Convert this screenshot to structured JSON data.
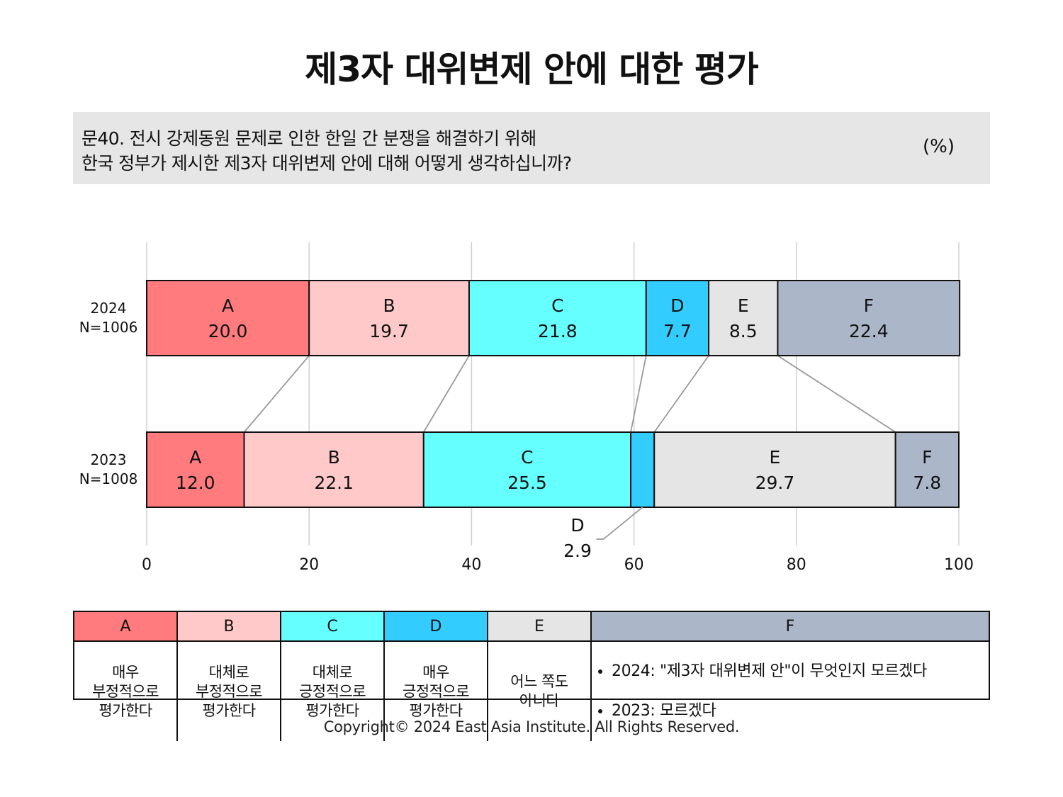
{
  "title": "제3자 대위변제 안에 대한 평가",
  "question": {
    "line1": "문40. 전시 강제동원 문제로 인한 한일 간 분쟁을 해결하기 위해",
    "line2": "한국 정부가 제시한 제3자 대위변제 안에 대해 어떻게 생각하십니까?",
    "unit": "(%)"
  },
  "chart_data": {
    "type": "bar",
    "orientation": "horizontal",
    "stacked": true,
    "categories": [
      "A",
      "B",
      "C",
      "D",
      "E",
      "F"
    ],
    "colors": [
      "#ff7b7e",
      "#ffc9c9",
      "#66ffff",
      "#33ccff",
      "#e6e5e6",
      "#acb6c9"
    ],
    "rows": [
      {
        "year": "2024",
        "n": "N=1006",
        "values": [
          20.0,
          19.7,
          21.8,
          7.7,
          8.5,
          22.4
        ],
        "labels": [
          "20.0",
          "19.7",
          "21.8",
          "7.7",
          "8.5",
          "22.4"
        ]
      },
      {
        "year": "2023",
        "n": "N=1008",
        "values": [
          12.0,
          22.1,
          25.5,
          2.9,
          29.7,
          7.8
        ],
        "labels": [
          "12.0",
          "22.1",
          "25.5",
          "2.9",
          "29.7",
          "7.8"
        ]
      }
    ],
    "xlim": [
      0,
      100
    ],
    "xticks": [
      "0",
      "20",
      "40",
      "60",
      "80",
      "100"
    ],
    "grid": true,
    "callout": {
      "row": "2023",
      "category": "D",
      "label": "D",
      "value_label": "2.9"
    }
  },
  "legend": [
    {
      "key": "A",
      "desc": "매우\n부정적으로\n평가한다"
    },
    {
      "key": "B",
      "desc": "대체로\n부정적으로\n평가한다"
    },
    {
      "key": "C",
      "desc": "대체로\n긍정적으로\n평가한다"
    },
    {
      "key": "D",
      "desc": "매우\n긍정적으로\n평가한다"
    },
    {
      "key": "E",
      "desc": "어느 쪽도\n아니다"
    },
    {
      "key": "F",
      "items": [
        "2024: \"제3자 대위변제 안\"이 무엇인지 모르겠다",
        "2023: 모르겠다"
      ]
    }
  ],
  "copyright": "Copyright© 2024 East Asia Institute. All Rights Reserved."
}
